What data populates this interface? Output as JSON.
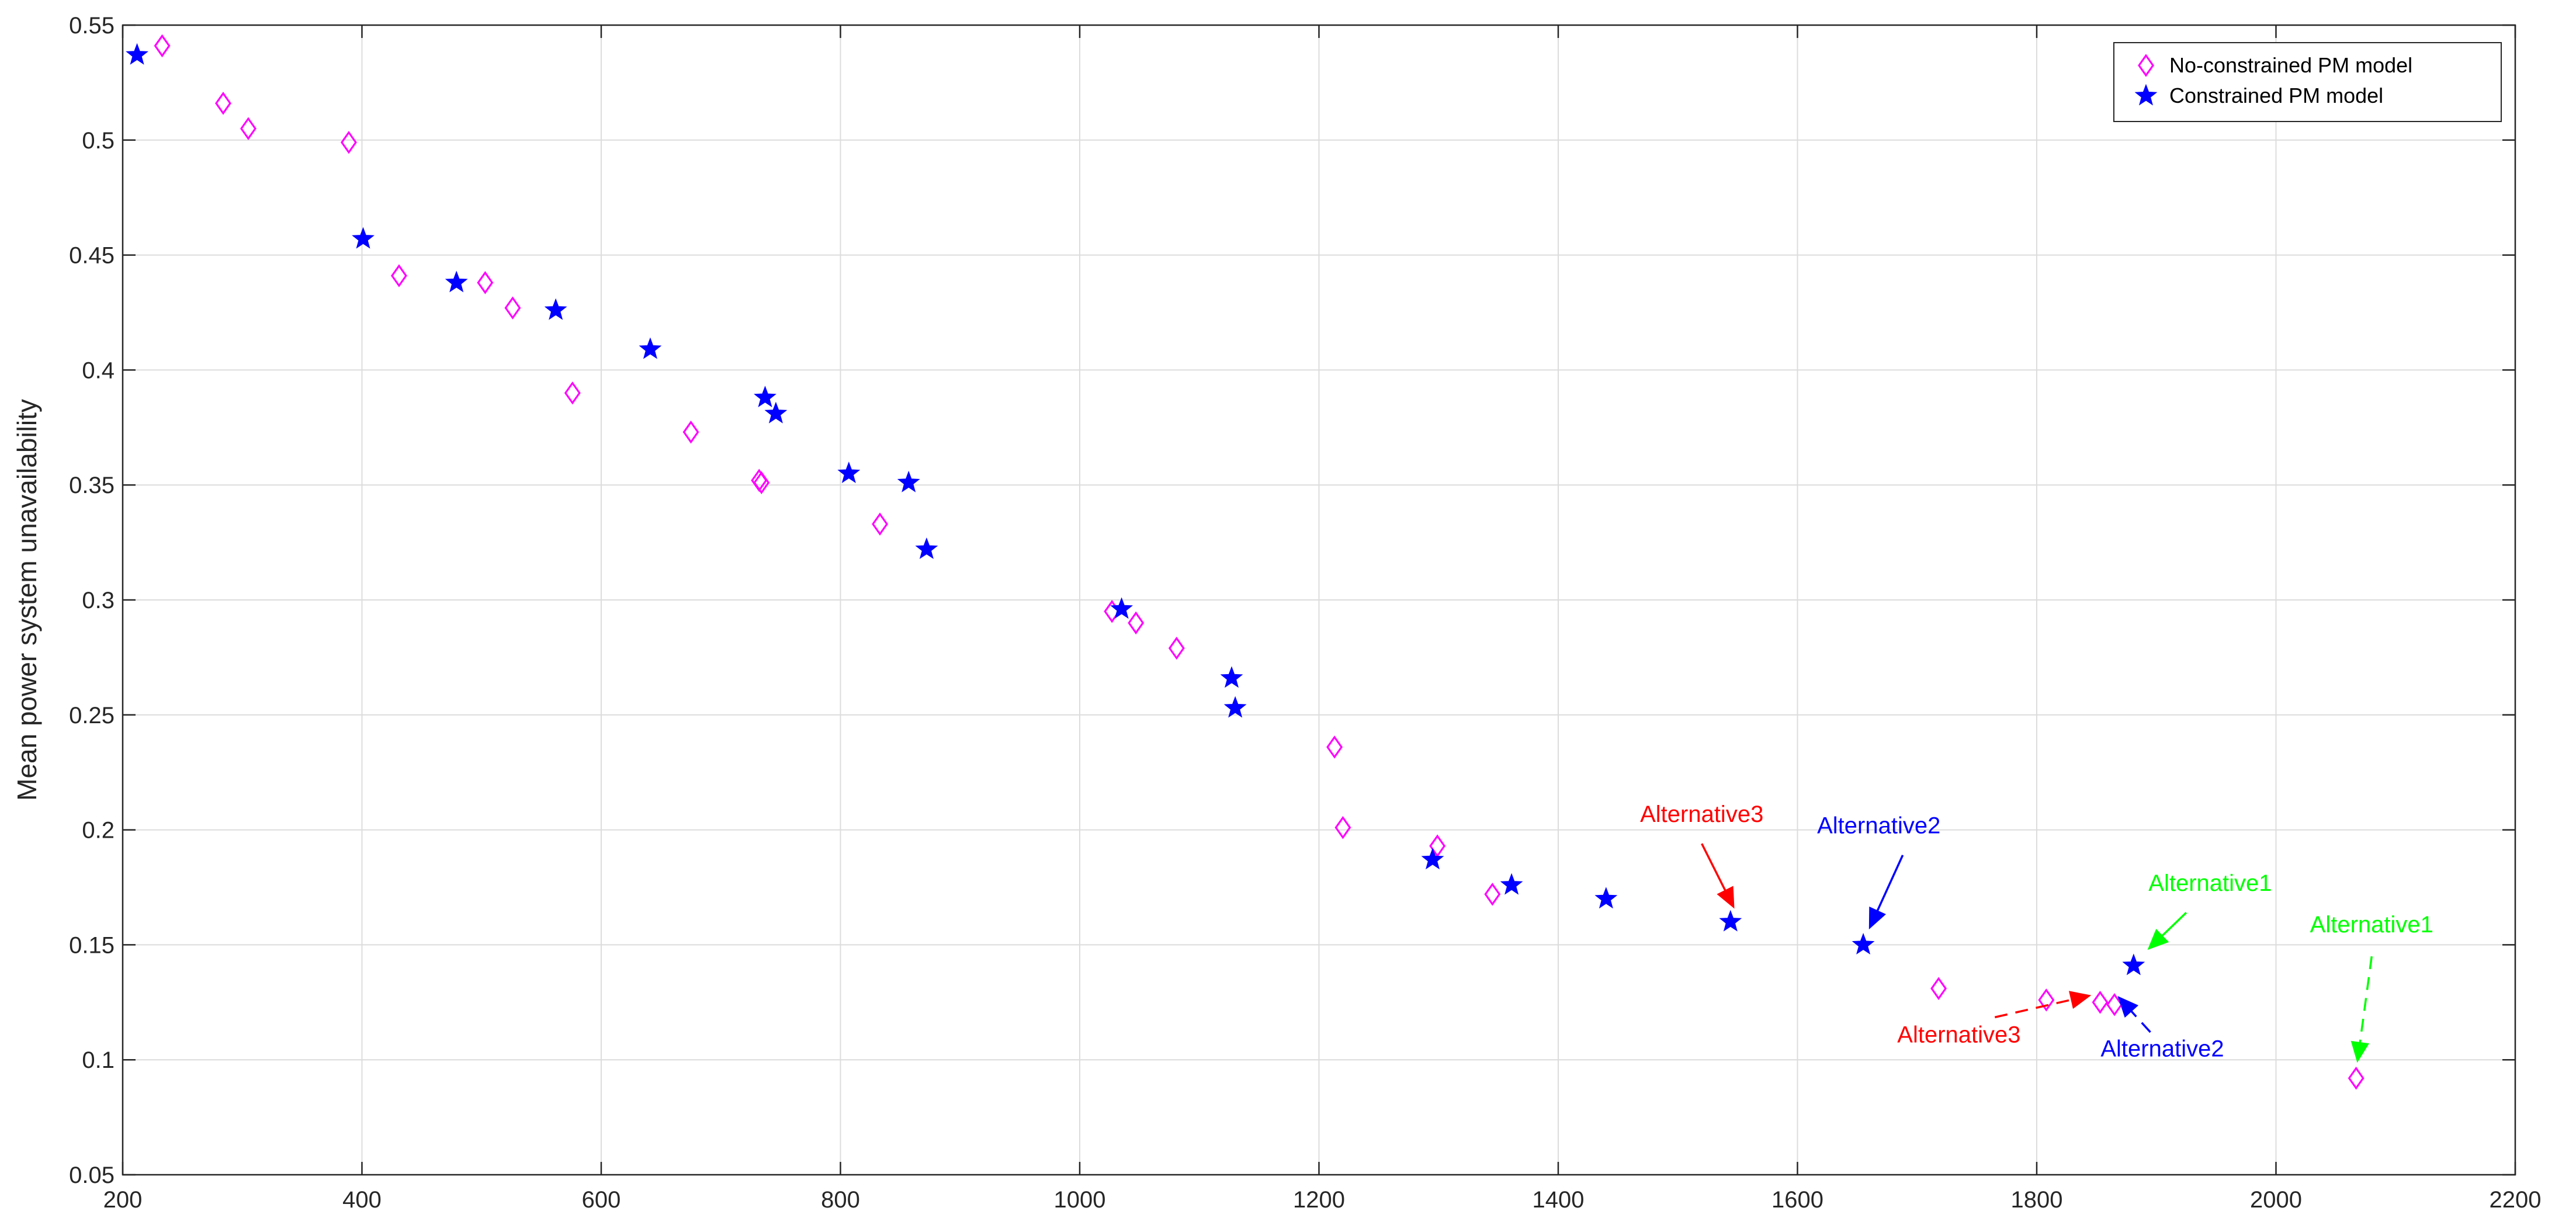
{
  "chart_data": {
    "type": "scatter",
    "title": "",
    "xlabel": "",
    "ylabel": "Mean power system unavailability",
    "xlim": [
      200,
      2200
    ],
    "ylim": [
      0.05,
      0.55
    ],
    "x_ticks": [
      200,
      400,
      600,
      800,
      1000,
      1200,
      1400,
      1600,
      1800,
      2000,
      2200
    ],
    "x_tick_labels": [
      "200",
      "400",
      "600",
      "800",
      "1000",
      "1200",
      "1400",
      "1600",
      "1800",
      "2000",
      "2200"
    ],
    "y_ticks": [
      0.05,
      0.1,
      0.15,
      0.2,
      0.25,
      0.3,
      0.35,
      0.4,
      0.45,
      0.5,
      0.55
    ],
    "y_tick_labels": [
      "0.05",
      "0.1",
      "0.15",
      "0.2",
      "0.25",
      "0.3",
      "0.35",
      "0.4",
      "0.45",
      "0.5",
      "0.55"
    ],
    "grid": true,
    "legend_position": "top-right",
    "series": [
      {
        "name": "No-constrained PM model",
        "marker": "diamond",
        "color": "#ff00ff",
        "points": [
          [
            233,
            0.541
          ],
          [
            284,
            0.516
          ],
          [
            305,
            0.505
          ],
          [
            389,
            0.499
          ],
          [
            431,
            0.441
          ],
          [
            503,
            0.438
          ],
          [
            526,
            0.427
          ],
          [
            576,
            0.39
          ],
          [
            675,
            0.373
          ],
          [
            732,
            0.352
          ],
          [
            734,
            0.351
          ],
          [
            833,
            0.333
          ],
          [
            1027,
            0.295
          ],
          [
            1047,
            0.29
          ],
          [
            1081,
            0.279
          ],
          [
            1213,
            0.236
          ],
          [
            1220,
            0.201
          ],
          [
            1299,
            0.193
          ],
          [
            1345,
            0.172
          ],
          [
            1718,
            0.131
          ],
          [
            1808,
            0.126
          ],
          [
            1853,
            0.125
          ],
          [
            1865,
            0.124
          ],
          [
            2067,
            0.092
          ]
        ]
      },
      {
        "name": "Constrained PM model",
        "marker": "star",
        "color": "#0000ff",
        "points": [
          [
            212,
            0.537
          ],
          [
            401,
            0.457
          ],
          [
            479,
            0.438
          ],
          [
            562,
            0.426
          ],
          [
            641,
            0.409
          ],
          [
            737,
            0.388
          ],
          [
            746,
            0.381
          ],
          [
            807,
            0.355
          ],
          [
            857,
            0.351
          ],
          [
            872,
            0.322
          ],
          [
            1035,
            0.296
          ],
          [
            1127,
            0.266
          ],
          [
            1130,
            0.253
          ],
          [
            1295,
            0.187
          ],
          [
            1361,
            0.176
          ],
          [
            1440,
            0.17
          ],
          [
            1544,
            0.16
          ],
          [
            1655,
            0.15
          ],
          [
            1881,
            0.141
          ]
        ]
      }
    ],
    "annotations": [
      {
        "text": "Alternative3",
        "color": "#ff0000",
        "text_at": [
          1520,
          0.2035
        ],
        "arrow_from": [
          1520,
          0.194
        ],
        "arrow_to": [
          1547,
          0.166
        ],
        "dashed": false
      },
      {
        "text": "Alternative2",
        "color": "#0000ff",
        "text_at": [
          1668,
          0.1985
        ],
        "arrow_from": [
          1688,
          0.189
        ],
        "arrow_to": [
          1660,
          0.157
        ],
        "dashed": false
      },
      {
        "text": "Alternative1",
        "color": "#00ff00",
        "text_at": [
          1945,
          0.1735
        ],
        "arrow_from": [
          1925,
          0.164
        ],
        "arrow_to": [
          1893,
          0.148
        ],
        "dashed": false
      },
      {
        "text": "Alternative1",
        "color": "#00ff00",
        "text_at": [
          2080,
          0.1555
        ],
        "arrow_from": [
          2080,
          0.145
        ],
        "arrow_to": [
          2068,
          0.099
        ],
        "dashed": true
      },
      {
        "text": "Alternative3",
        "color": "#ff0000",
        "text_at": [
          1735,
          0.1075
        ],
        "arrow_from": [
          1765,
          0.1185
        ],
        "arrow_to": [
          1845,
          0.128
        ],
        "dashed": true
      },
      {
        "text": "Alternative2",
        "color": "#0000ff",
        "text_at": [
          1905,
          0.1015
        ],
        "arrow_from": [
          1895,
          0.112
        ],
        "arrow_to": [
          1868,
          0.1275
        ],
        "dashed": true
      }
    ]
  }
}
